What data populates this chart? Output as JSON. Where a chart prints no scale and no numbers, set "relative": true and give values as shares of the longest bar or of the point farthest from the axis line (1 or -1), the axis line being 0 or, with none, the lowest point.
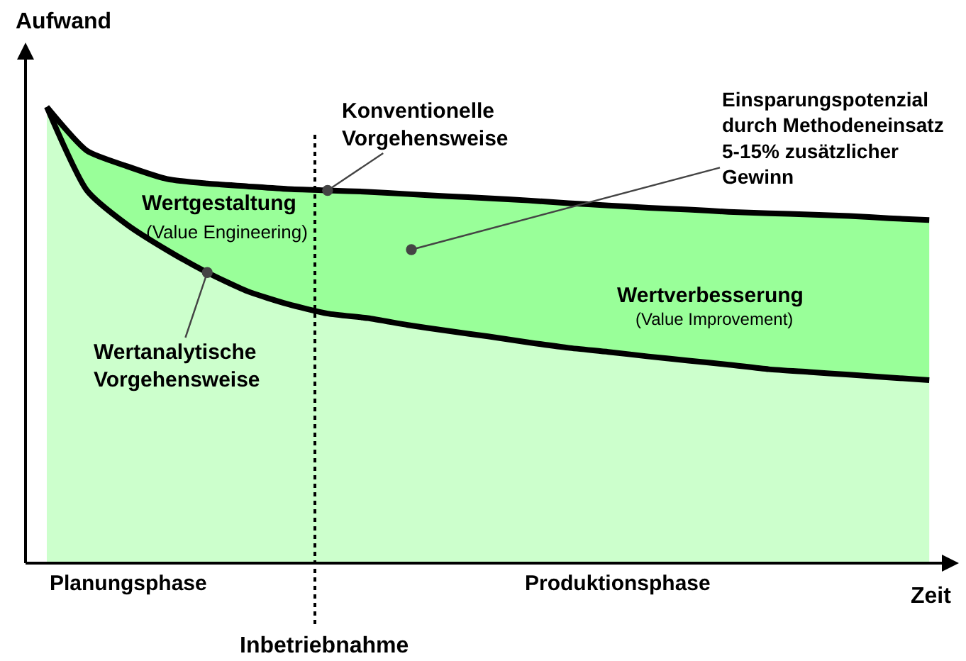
{
  "chart_data": {
    "type": "area",
    "relative": true,
    "xlabel": "Zeit",
    "ylabel": "Aufwand",
    "legend": false,
    "categories": [
      null,
      null,
      null,
      null,
      null,
      null,
      null,
      null,
      null,
      null,
      null,
      null,
      null,
      null,
      null,
      null,
      null,
      null,
      null,
      null,
      null,
      null,
      null
    ],
    "series": [
      {
        "name": "Wertanalytische\nVorgehensweise",
        "color": "#ccffcc",
        "values": [
          1.0,
          0.817,
          0.742,
          0.686,
          0.637,
          0.596,
          0.568,
          0.547,
          0.537,
          0.522,
          0.509,
          0.497,
          0.484,
          0.472,
          0.463,
          0.453,
          0.444,
          0.435,
          0.425,
          0.419,
          0.413,
          0.407,
          0.401
        ]
      },
      {
        "name": "Konventionelle\nVorgehensweise",
        "color": "#99ff99",
        "values": [
          1.0,
          0.904,
          0.87,
          0.842,
          0.832,
          0.826,
          0.82,
          0.817,
          0.814,
          0.809,
          0.804,
          0.8,
          0.795,
          0.789,
          0.784,
          0.779,
          0.775,
          0.77,
          0.767,
          0.764,
          0.761,
          0.756,
          0.752
        ]
      }
    ],
    "line_style": "solid",
    "annotations": [
      "Wertgestaltung",
      "(Value Engineering)",
      "Wertverbesserung",
      "(Value Improvement)",
      "Einsparungspotenzial\ndurch Methodeneinsatz\n5-15% zusätzlicher\nGewinn",
      "Planungsphase",
      "Produktionsphase",
      "Inbetriebnahme"
    ]
  }
}
